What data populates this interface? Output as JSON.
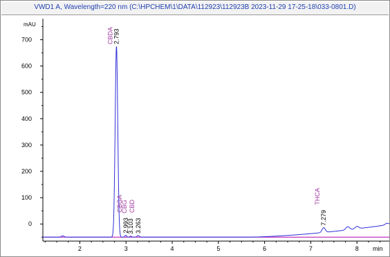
{
  "window": {
    "title": "VWD1 A, Wavelength=220 nm (C:\\HPCHEM\\1\\DATA\\112923\\112923B 2023-11-29 17-25-18\\033-0801.D)"
  },
  "chart_data": {
    "type": "line",
    "ylabel": "mAU",
    "xlabel": "min",
    "xlim": [
      1.2,
      8.7
    ],
    "ylim": [
      -65,
      780
    ],
    "x_ticks": [
      "2",
      "3",
      "4",
      "5",
      "6",
      "7",
      "8"
    ],
    "y_ticks": [
      "0",
      "100",
      "200",
      "300",
      "400",
      "500",
      "600",
      "700"
    ],
    "colors": {
      "trace": "#2e2ed8",
      "baseline": "#b000b0",
      "peak_label": "#a03ca0",
      "rt_label": "#000000"
    },
    "peaks": [
      {
        "name": "CBDA",
        "rt": "2.793",
        "x": 2.793,
        "height": 725,
        "width": 0.028
      },
      {
        "name": "CBGA",
        "rt": "2.993",
        "x": 2.993,
        "height": 7,
        "width": 0.02
      },
      {
        "name": "CBG",
        "rt": "3.103",
        "x": 3.103,
        "height": 4,
        "width": 0.02
      },
      {
        "name": "CBD",
        "rt": "3.263",
        "x": 3.263,
        "height": 6,
        "width": 0.025
      },
      {
        "name": "THCA",
        "rt": "7.279",
        "x": 7.279,
        "height": 18,
        "width": 0.035
      }
    ],
    "minor_peaks": [
      {
        "x": 1.63,
        "height": 5,
        "width": 0.03
      },
      {
        "x": 7.8,
        "height": 12,
        "width": 0.04
      },
      {
        "x": 8.0,
        "height": 9,
        "width": 0.04
      },
      {
        "x": 8.65,
        "height": 6,
        "width": 0.04
      }
    ],
    "baseline": {
      "level": -50,
      "drift_start": 5.6,
      "drift_end_value": -2
    }
  }
}
